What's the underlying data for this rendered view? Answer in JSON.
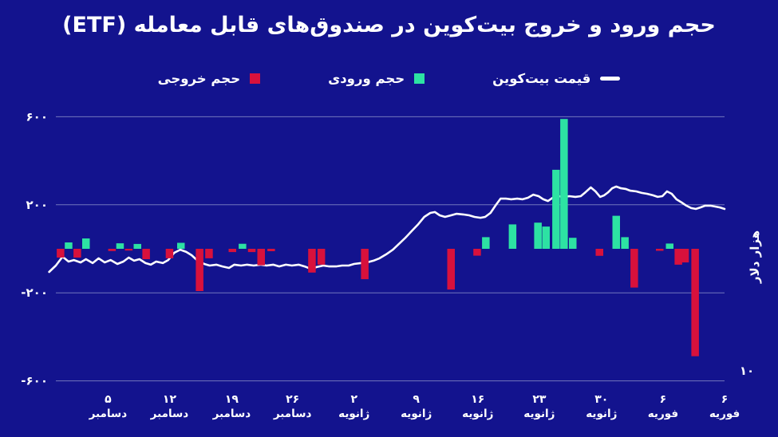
{
  "title": "حجم ورود و خروج بیت‌کوین در صندوق‌های قابل معامله (ETF)",
  "legend": {
    "price": {
      "label": "قیمت بیت‌کوین"
    },
    "inflow": {
      "label": "حجم ورودی"
    },
    "outflow": {
      "label": "حجم خروجی"
    }
  },
  "colors": {
    "background": "#13138e",
    "inflow": "#2de2a3",
    "outflow": "#d8113c",
    "price_line": "#ffffff",
    "gridline": "#c3c8e4",
    "text": "#ffffff"
  },
  "chart_data": {
    "type": "bar+line",
    "title": "حجم ورود و خروج بیت‌کوین در صندوق‌های قابل معامله (ETF)",
    "grid": "horizontal-only",
    "legend_position": "top-center",
    "ylim": [
      -600,
      600
    ],
    "y_gridlines": [
      {
        "value": 600,
        "label": "۶۰۰"
      },
      {
        "value": 200,
        "label": "۲۰۰"
      },
      {
        "value": -200,
        "label": "-۲۰۰"
      },
      {
        "value": -600,
        "label": "-۶۰۰"
      }
    ],
    "right_axis": {
      "label": "هزار دلار",
      "tick": "۱۰"
    },
    "x_ticks": [
      {
        "pos": 0.078,
        "day": "۵",
        "month": "دسامبر"
      },
      {
        "pos": 0.17,
        "day": "۱۲",
        "month": "دسامبر"
      },
      {
        "pos": 0.263,
        "day": "۱۹",
        "month": "دسامبر"
      },
      {
        "pos": 0.354,
        "day": "۲۶",
        "month": "دسامبر"
      },
      {
        "pos": 0.446,
        "day": "۲",
        "month": "ژانویه"
      },
      {
        "pos": 0.539,
        "day": "۹",
        "month": "ژانویه"
      },
      {
        "pos": 0.631,
        "day": "۱۶",
        "month": "ژانویه"
      },
      {
        "pos": 0.723,
        "day": "۲۳",
        "month": "ژانویه"
      },
      {
        "pos": 0.816,
        "day": "۳۰",
        "month": "ژانویه"
      },
      {
        "pos": 0.908,
        "day": "۶",
        "month": "فوریه"
      },
      {
        "pos": 1.0,
        "day": "۶",
        "month": "فوریه"
      }
    ],
    "bars_units": "million-dollars (left axis)",
    "bars": [
      {
        "x": 0.007,
        "v": -40,
        "s": "out"
      },
      {
        "x": 0.019,
        "v": 29,
        "s": "in"
      },
      {
        "x": 0.032,
        "v": -40,
        "s": "out"
      },
      {
        "x": 0.045,
        "v": 47,
        "s": "in"
      },
      {
        "x": 0.084,
        "v": -10,
        "s": "out"
      },
      {
        "x": 0.096,
        "v": 25,
        "s": "in"
      },
      {
        "x": 0.109,
        "v": -8,
        "s": "out"
      },
      {
        "x": 0.122,
        "v": 22,
        "s": "in"
      },
      {
        "x": 0.135,
        "v": -47,
        "s": "out"
      },
      {
        "x": 0.17,
        "v": -43,
        "s": "out"
      },
      {
        "x": 0.187,
        "v": 27,
        "s": "in"
      },
      {
        "x": 0.215,
        "v": -192,
        "s": "out"
      },
      {
        "x": 0.229,
        "v": -43,
        "s": "out"
      },
      {
        "x": 0.264,
        "v": -15,
        "s": "out"
      },
      {
        "x": 0.279,
        "v": 23,
        "s": "in"
      },
      {
        "x": 0.293,
        "v": -15,
        "s": "out"
      },
      {
        "x": 0.307,
        "v": -75,
        "s": "out"
      },
      {
        "x": 0.322,
        "v": -11,
        "s": "out"
      },
      {
        "x": 0.383,
        "v": -108,
        "s": "out"
      },
      {
        "x": 0.397,
        "v": -72,
        "s": "out"
      },
      {
        "x": 0.462,
        "v": -138,
        "s": "out"
      },
      {
        "x": 0.591,
        "v": -185,
        "s": "out"
      },
      {
        "x": 0.63,
        "v": -31,
        "s": "out"
      },
      {
        "x": 0.643,
        "v": 53,
        "s": "in"
      },
      {
        "x": 0.683,
        "v": 111,
        "s": "in"
      },
      {
        "x": 0.721,
        "v": 119,
        "s": "in"
      },
      {
        "x": 0.733,
        "v": 101,
        "s": "in"
      },
      {
        "x": 0.748,
        "v": 359,
        "s": "in"
      },
      {
        "x": 0.76,
        "v": 590,
        "s": "in"
      },
      {
        "x": 0.773,
        "v": 50,
        "s": "in"
      },
      {
        "x": 0.813,
        "v": -32,
        "s": "out"
      },
      {
        "x": 0.838,
        "v": 150,
        "s": "in"
      },
      {
        "x": 0.851,
        "v": 53,
        "s": "in"
      },
      {
        "x": 0.865,
        "v": -176,
        "s": "out"
      },
      {
        "x": 0.903,
        "v": -9,
        "s": "out"
      },
      {
        "x": 0.918,
        "v": 24,
        "s": "in"
      },
      {
        "x": 0.931,
        "v": -72,
        "s": "out"
      },
      {
        "x": 0.941,
        "v": -62,
        "s": "out"
      },
      {
        "x": 0.956,
        "v": -488,
        "s": "out"
      }
    ],
    "price_line": {
      "name": "قیمت بیت‌کوین",
      "units": "left-axis-equivalent as drawn (right axis in هزار دلار)",
      "points": [
        [
          -0.01,
          -105
        ],
        [
          0.0,
          -76
        ],
        [
          0.01,
          -36
        ],
        [
          0.019,
          -58
        ],
        [
          0.027,
          -51
        ],
        [
          0.037,
          -62
        ],
        [
          0.045,
          -47
        ],
        [
          0.055,
          -65
        ],
        [
          0.064,
          -43
        ],
        [
          0.073,
          -62
        ],
        [
          0.082,
          -51
        ],
        [
          0.092,
          -69
        ],
        [
          0.101,
          -58
        ],
        [
          0.109,
          -40
        ],
        [
          0.117,
          -54
        ],
        [
          0.125,
          -47
        ],
        [
          0.134,
          -65
        ],
        [
          0.142,
          -72
        ],
        [
          0.15,
          -58
        ],
        [
          0.16,
          -65
        ],
        [
          0.168,
          -51
        ],
        [
          0.177,
          -18
        ],
        [
          0.186,
          -4
        ],
        [
          0.195,
          -14
        ],
        [
          0.203,
          -29
        ],
        [
          0.212,
          -54
        ],
        [
          0.222,
          -69
        ],
        [
          0.23,
          -76
        ],
        [
          0.24,
          -72
        ],
        [
          0.249,
          -80
        ],
        [
          0.259,
          -87
        ],
        [
          0.267,
          -72
        ],
        [
          0.277,
          -76
        ],
        [
          0.286,
          -72
        ],
        [
          0.296,
          -76
        ],
        [
          0.306,
          -72
        ],
        [
          0.315,
          -76
        ],
        [
          0.325,
          -72
        ],
        [
          0.334,
          -80
        ],
        [
          0.344,
          -72
        ],
        [
          0.353,
          -76
        ],
        [
          0.363,
          -72
        ],
        [
          0.372,
          -80
        ],
        [
          0.381,
          -91
        ],
        [
          0.39,
          -83
        ],
        [
          0.4,
          -76
        ],
        [
          0.409,
          -80
        ],
        [
          0.419,
          -80
        ],
        [
          0.428,
          -76
        ],
        [
          0.438,
          -76
        ],
        [
          0.446,
          -69
        ],
        [
          0.456,
          -65
        ],
        [
          0.465,
          -62
        ],
        [
          0.475,
          -54
        ],
        [
          0.484,
          -43
        ],
        [
          0.494,
          -25
        ],
        [
          0.504,
          -4
        ],
        [
          0.513,
          22
        ],
        [
          0.523,
          51
        ],
        [
          0.532,
          80
        ],
        [
          0.542,
          112
        ],
        [
          0.551,
          145
        ],
        [
          0.56,
          163
        ],
        [
          0.567,
          167
        ],
        [
          0.574,
          152
        ],
        [
          0.582,
          145
        ],
        [
          0.591,
          152
        ],
        [
          0.599,
          159
        ],
        [
          0.609,
          156
        ],
        [
          0.618,
          152
        ],
        [
          0.626,
          145
        ],
        [
          0.635,
          141
        ],
        [
          0.642,
          145
        ],
        [
          0.65,
          163
        ],
        [
          0.658,
          199
        ],
        [
          0.665,
          228
        ],
        [
          0.673,
          228
        ],
        [
          0.681,
          225
        ],
        [
          0.69,
          228
        ],
        [
          0.698,
          225
        ],
        [
          0.706,
          232
        ],
        [
          0.714,
          246
        ],
        [
          0.722,
          239
        ],
        [
          0.729,
          225
        ],
        [
          0.736,
          217
        ],
        [
          0.743,
          232
        ],
        [
          0.752,
          239
        ],
        [
          0.76,
          236
        ],
        [
          0.768,
          239
        ],
        [
          0.777,
          236
        ],
        [
          0.785,
          239
        ],
        [
          0.792,
          257
        ],
        [
          0.8,
          279
        ],
        [
          0.807,
          261
        ],
        [
          0.814,
          236
        ],
        [
          0.82,
          243
        ],
        [
          0.826,
          257
        ],
        [
          0.832,
          275
        ],
        [
          0.838,
          283
        ],
        [
          0.845,
          275
        ],
        [
          0.852,
          272
        ],
        [
          0.859,
          264
        ],
        [
          0.868,
          261
        ],
        [
          0.876,
          254
        ],
        [
          0.884,
          250
        ],
        [
          0.893,
          243
        ],
        [
          0.9,
          236
        ],
        [
          0.907,
          239
        ],
        [
          0.914,
          261
        ],
        [
          0.921,
          250
        ],
        [
          0.928,
          225
        ],
        [
          0.936,
          210
        ],
        [
          0.943,
          196
        ],
        [
          0.95,
          185
        ],
        [
          0.957,
          181
        ],
        [
          0.964,
          188
        ],
        [
          0.971,
          196
        ],
        [
          0.979,
          196
        ],
        [
          0.986,
          192
        ],
        [
          0.993,
          188
        ],
        [
          1.0,
          181
        ]
      ]
    }
  }
}
